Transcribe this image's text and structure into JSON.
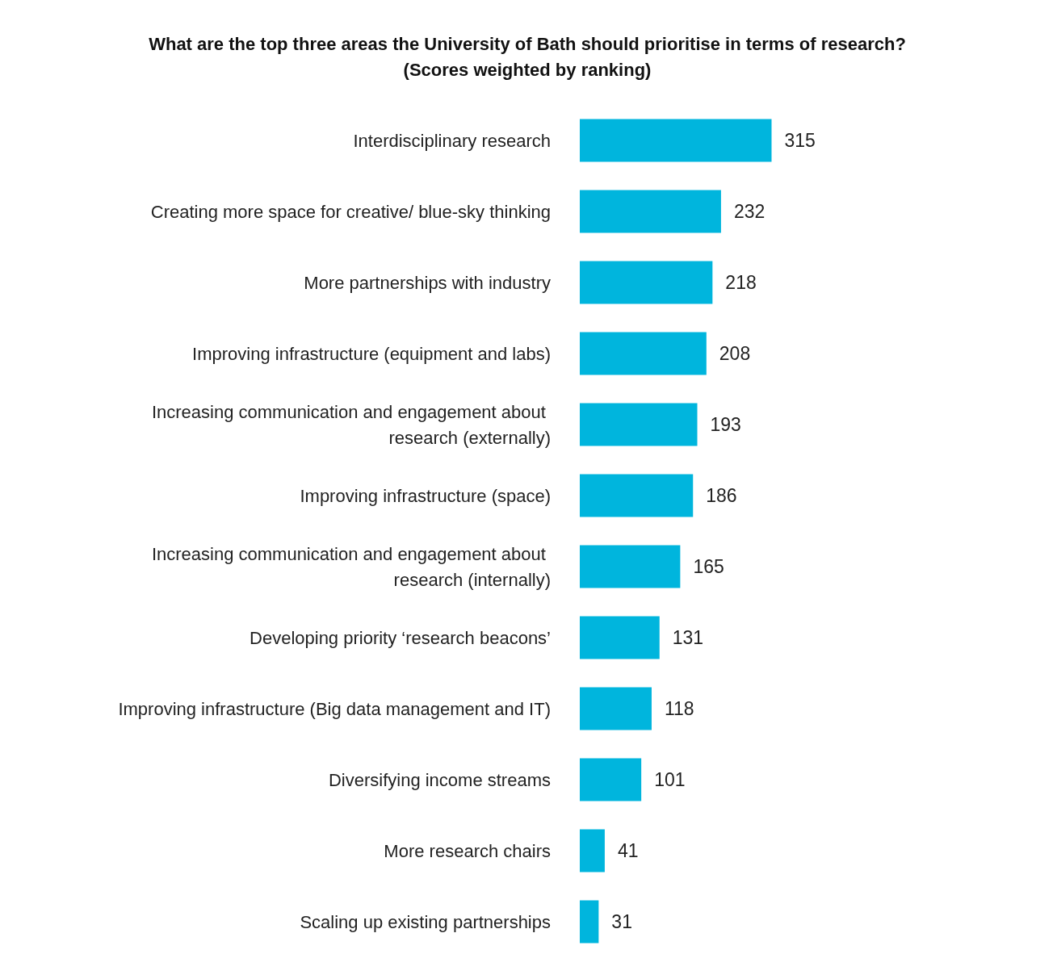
{
  "chart_data": {
    "type": "bar",
    "orientation": "horizontal",
    "title": "What are the top three areas the University of Bath should prioritise in terms of research?",
    "subtitle": "(Scores weighted by ranking)",
    "categories": [
      "Interdisciplinary research",
      "Creating more space for creative/ blue-sky thinking",
      "More partnerships with industry",
      "Improving infrastructure (equipment and labs)",
      "Increasing communication and engagement about research (externally)",
      "Improving infrastructure (space)",
      "Increasing communication and engagement about research (internally)",
      "Developing priority ‘research beacons’",
      "Improving infrastructure (Big data management and IT)",
      "Diversifying income streams",
      "More research chairs",
      "Scaling up existing partnerships"
    ],
    "values": [
      315,
      232,
      218,
      208,
      193,
      186,
      165,
      131,
      118,
      101,
      41,
      31
    ],
    "color": "#00b5dd",
    "data_labels": true
  }
}
